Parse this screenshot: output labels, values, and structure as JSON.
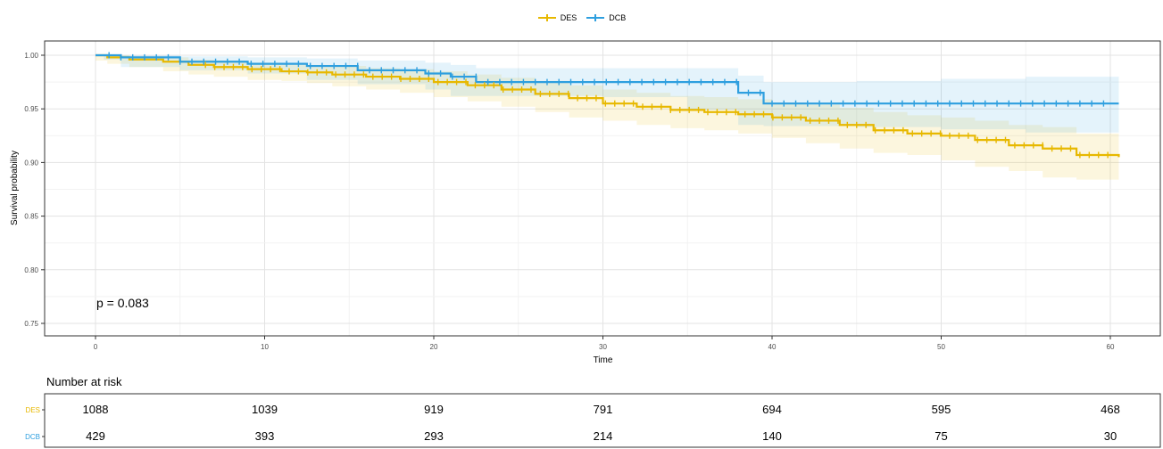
{
  "chart_data": {
    "type": "line",
    "subtype": "kaplan-meier",
    "xlabel": "Time",
    "ylabel": "Survival probability",
    "xlim": [
      0,
      60
    ],
    "ylim": [
      0.75,
      1.0
    ],
    "x_ticks": [
      "0",
      "10",
      "20",
      "30",
      "40",
      "50",
      "60"
    ],
    "y_ticks": [
      "0.75",
      "0.80",
      "0.85",
      "0.90",
      "0.95",
      "1.00"
    ],
    "grid": true,
    "legend_position": "top",
    "annotation": "p = 0.083",
    "series": [
      {
        "name": "DES",
        "color": "#E7B800",
        "x": [
          0,
          0.7,
          2,
          4,
          5.5,
          7,
          9,
          11,
          12.5,
          14,
          16,
          18,
          20,
          22,
          24,
          26,
          28,
          30,
          32,
          34,
          36,
          38,
          40,
          42,
          44,
          46,
          48,
          50,
          52,
          54,
          56,
          58,
          60.5
        ],
        "y": [
          1.0,
          0.998,
          0.996,
          0.994,
          0.991,
          0.989,
          0.987,
          0.985,
          0.984,
          0.982,
          0.98,
          0.978,
          0.975,
          0.972,
          0.968,
          0.964,
          0.96,
          0.955,
          0.952,
          0.949,
          0.947,
          0.945,
          0.942,
          0.939,
          0.935,
          0.93,
          0.927,
          0.925,
          0.921,
          0.916,
          0.913,
          0.907,
          0.905
        ],
        "ci_upper": [
          1.0,
          1.0,
          0.999,
          0.998,
          0.996,
          0.995,
          0.993,
          0.992,
          0.991,
          0.99,
          0.988,
          0.987,
          0.985,
          0.982,
          0.979,
          0.976,
          0.972,
          0.968,
          0.965,
          0.962,
          0.961,
          0.959,
          0.956,
          0.954,
          0.951,
          0.947,
          0.944,
          0.942,
          0.939,
          0.935,
          0.933,
          0.927,
          0.926
        ],
        "ci_lower": [
          1.0,
          0.995,
          0.992,
          0.989,
          0.985,
          0.982,
          0.98,
          0.977,
          0.976,
          0.974,
          0.971,
          0.968,
          0.965,
          0.961,
          0.957,
          0.952,
          0.947,
          0.942,
          0.939,
          0.935,
          0.932,
          0.93,
          0.927,
          0.923,
          0.918,
          0.913,
          0.909,
          0.907,
          0.902,
          0.896,
          0.892,
          0.886,
          0.884
        ]
      },
      {
        "name": "DCB",
        "color": "#2E9FDF",
        "x": [
          0,
          0.5,
          1.5,
          5,
          9,
          12.5,
          15.5,
          19.5,
          21,
          22.5,
          25,
          30,
          35,
          38,
          39.5,
          45,
          50,
          55,
          60.5
        ],
        "y": [
          1.0,
          1.0,
          0.998,
          0.994,
          0.992,
          0.99,
          0.986,
          0.983,
          0.98,
          0.975,
          0.975,
          0.975,
          0.975,
          0.965,
          0.955,
          0.955,
          0.955,
          0.955,
          0.955
        ],
        "ci_upper": [
          1.0,
          1.0,
          1.0,
          0.999,
          0.998,
          0.997,
          0.995,
          0.993,
          0.991,
          0.988,
          0.988,
          0.988,
          0.988,
          0.981,
          0.975,
          0.976,
          0.978,
          0.98,
          0.983
        ],
        "ci_lower": [
          1.0,
          1.0,
          0.996,
          0.989,
          0.986,
          0.983,
          0.977,
          0.973,
          0.968,
          0.962,
          0.962,
          0.962,
          0.961,
          0.949,
          0.935,
          0.934,
          0.933,
          0.931,
          0.928
        ]
      }
    ],
    "risk_table": {
      "title": "Number at risk",
      "times": [
        0,
        10,
        20,
        30,
        40,
        50,
        60
      ],
      "rows": [
        {
          "label": "DES",
          "color": "#E7B800",
          "values": [
            "1088",
            "1039",
            "919",
            "791",
            "694",
            "595",
            "468"
          ]
        },
        {
          "label": "DCB",
          "color": "#2E9FDF",
          "values": [
            "429",
            "393",
            "293",
            "214",
            "140",
            "75",
            "30"
          ]
        }
      ]
    }
  }
}
